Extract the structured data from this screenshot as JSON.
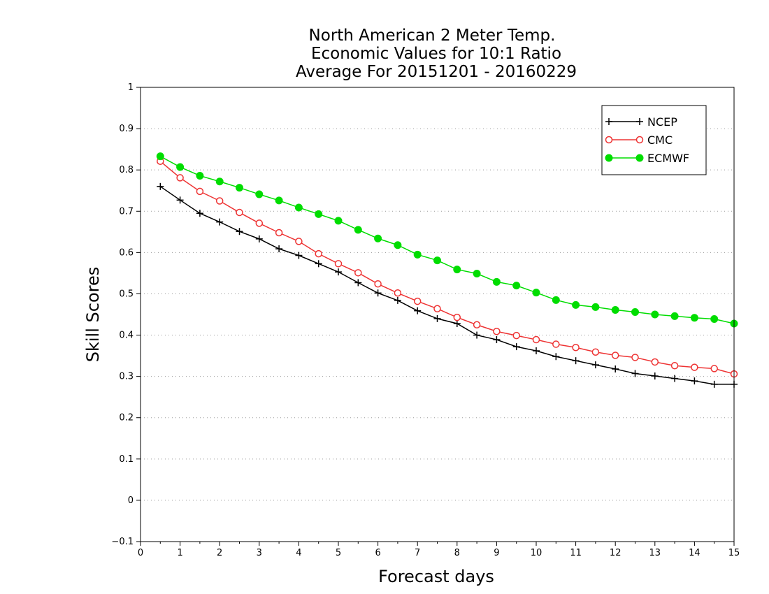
{
  "chart_data": {
    "type": "line",
    "title_lines": [
      "North American 2 Meter Temp.",
      "Economic Values for 10:1 Ratio",
      "Average For 20151201 - 20160229"
    ],
    "xlabel": "Forecast days",
    "ylabel": "Skill Scores",
    "xlim": [
      0,
      15
    ],
    "ylim": [
      -0.1,
      1
    ],
    "x_ticks": [
      "0",
      "1",
      "2",
      "3",
      "4",
      "5",
      "6",
      "7",
      "8",
      "9",
      "10",
      "11",
      "12",
      "13",
      "14",
      "15"
    ],
    "y_ticks": [
      "−0.1",
      "0",
      "0.1",
      "0.2",
      "0.3",
      "0.4",
      "0.5",
      "0.6",
      "0.7",
      "0.8",
      "0.9",
      "1"
    ],
    "grid": "horizontal dotted",
    "legend_position": "top-right",
    "x": [
      0.5,
      1,
      1.5,
      2,
      2.5,
      3,
      3.5,
      4,
      4.5,
      5,
      5.5,
      6,
      6.5,
      7,
      7.5,
      8,
      8.5,
      9,
      9.5,
      10,
      10.5,
      11,
      11.5,
      12,
      12.5,
      13,
      13.5,
      14,
      14.5,
      15
    ],
    "series": [
      {
        "name": "NCEP",
        "color": "#000000",
        "marker": "plus",
        "values": [
          0.76,
          0.727,
          0.695,
          0.674,
          0.651,
          0.633,
          0.609,
          0.593,
          0.573,
          0.553,
          0.527,
          0.502,
          0.484,
          0.459,
          0.44,
          0.428,
          0.4,
          0.389,
          0.372,
          0.362,
          0.348,
          0.338,
          0.328,
          0.318,
          0.307,
          0.301,
          0.295,
          0.289,
          0.281,
          0.281
        ]
      },
      {
        "name": "CMC",
        "color": "#ee3333",
        "marker": "open-circle",
        "values": [
          0.821,
          0.781,
          0.748,
          0.725,
          0.697,
          0.671,
          0.648,
          0.627,
          0.597,
          0.573,
          0.551,
          0.524,
          0.502,
          0.482,
          0.464,
          0.443,
          0.425,
          0.409,
          0.399,
          0.389,
          0.378,
          0.37,
          0.359,
          0.351,
          0.346,
          0.335,
          0.326,
          0.322,
          0.319,
          0.306
        ]
      },
      {
        "name": "ECMWF",
        "color": "#00dd00",
        "marker": "filled-circle",
        "values": [
          0.833,
          0.807,
          0.786,
          0.772,
          0.757,
          0.741,
          0.726,
          0.709,
          0.693,
          0.677,
          0.655,
          0.634,
          0.618,
          0.595,
          0.581,
          0.559,
          0.549,
          0.529,
          0.52,
          0.503,
          0.485,
          0.473,
          0.468,
          0.461,
          0.456,
          0.45,
          0.446,
          0.442,
          0.439,
          0.428
        ]
      }
    ]
  }
}
